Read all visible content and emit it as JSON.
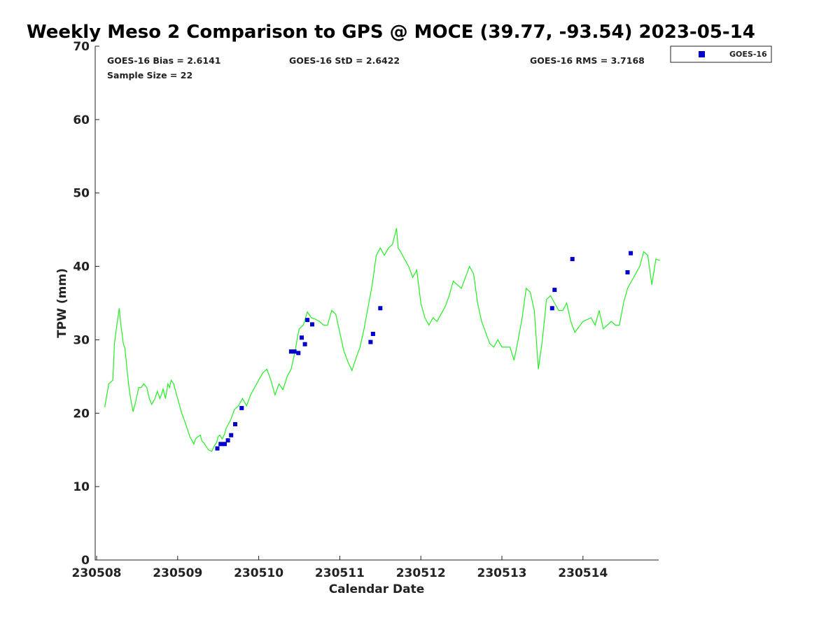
{
  "chart_data": {
    "type": "scatter",
    "title": "Weekly Meso 2 Comparison to GPS @ MOCE (39.77, -93.54) 2023-05-14",
    "xlabel": "Calendar Date",
    "ylabel": "TPW (mm)",
    "xlim": [
      0.0,
      6.95
    ],
    "ylim": [
      0,
      70
    ],
    "x_ticks": [
      {
        "value": 0,
        "label": "230508"
      },
      {
        "value": 1,
        "label": "230509"
      },
      {
        "value": 2,
        "label": "230510"
      },
      {
        "value": 3,
        "label": "230511"
      },
      {
        "value": 4,
        "label": "230512"
      },
      {
        "value": 5,
        "label": "230513"
      },
      {
        "value": 6,
        "label": "230514"
      }
    ],
    "y_ticks": [
      0,
      10,
      20,
      30,
      40,
      50,
      60,
      70
    ],
    "stats": {
      "bias": "GOES-16 Bias = 2.6141",
      "std": "GOES-16 StD = 2.6422",
      "rms": "GOES-16 RMS = 3.7168",
      "sample": "Sample Size = 22"
    },
    "legend": {
      "position": "top-right",
      "entries": [
        {
          "name": "GOES-16",
          "marker": "square",
          "color": "#0000cc"
        }
      ]
    },
    "series": [
      {
        "name": "GPS",
        "kind": "line",
        "color": "#22ee22",
        "x": [
          0.1,
          0.15,
          0.2,
          0.22,
          0.25,
          0.28,
          0.3,
          0.33,
          0.35,
          0.38,
          0.4,
          0.42,
          0.45,
          0.48,
          0.52,
          0.55,
          0.58,
          0.62,
          0.65,
          0.68,
          0.72,
          0.75,
          0.78,
          0.8,
          0.82,
          0.85,
          0.88,
          0.9,
          0.92,
          0.95,
          1.0,
          1.05,
          1.1,
          1.15,
          1.2,
          1.22,
          1.25,
          1.28,
          1.3,
          1.32,
          1.35,
          1.38,
          1.42,
          1.45,
          1.48,
          1.5,
          1.52,
          1.55,
          1.58,
          1.6,
          1.65,
          1.7,
          1.75,
          1.8,
          1.85,
          1.9,
          1.95,
          2.0,
          2.05,
          2.1,
          2.15,
          2.2,
          2.25,
          2.28,
          2.3,
          2.35,
          2.4,
          2.45,
          2.48,
          2.5,
          2.55,
          2.6,
          2.65,
          2.7,
          2.75,
          2.8,
          2.85,
          2.9,
          2.95,
          3.0,
          3.05,
          3.1,
          3.15,
          3.2,
          3.25,
          3.3,
          3.35,
          3.4,
          3.45,
          3.5,
          3.55,
          3.6,
          3.65,
          3.7,
          3.72,
          3.75,
          3.8,
          3.85,
          3.9,
          3.95,
          4.0,
          4.05,
          4.1,
          4.15,
          4.2,
          4.25,
          4.3,
          4.35,
          4.4,
          4.45,
          4.5,
          4.55,
          4.6,
          4.65,
          4.7,
          4.75,
          4.8,
          4.85,
          4.9,
          4.95,
          5.0,
          5.1,
          5.15,
          5.2,
          5.25,
          5.3,
          5.35,
          5.4,
          5.45,
          5.5,
          5.55,
          5.6,
          5.65,
          5.7,
          5.75,
          5.8,
          5.85,
          5.9,
          6.0,
          6.1,
          6.15,
          6.2,
          6.25,
          6.3,
          6.35,
          6.4,
          6.45,
          6.5,
          6.55,
          6.6,
          6.65,
          6.7,
          6.75,
          6.8,
          6.85,
          6.9,
          6.95
        ],
        "y": [
          20.8,
          24.0,
          24.5,
          29.5,
          32.0,
          34.3,
          32.0,
          29.5,
          28.8,
          25.5,
          23.5,
          22.0,
          20.2,
          21.5,
          23.5,
          23.5,
          24.0,
          23.5,
          22.0,
          21.2,
          22.0,
          23.0,
          22.0,
          22.5,
          23.3,
          22.0,
          24.0,
          23.5,
          24.5,
          24.0,
          22.0,
          20.0,
          18.5,
          16.8,
          15.8,
          16.5,
          16.8,
          17.0,
          16.2,
          16.0,
          15.5,
          15.0,
          14.8,
          15.5,
          16.0,
          16.8,
          17.0,
          16.5,
          17.2,
          18.0,
          19.0,
          20.5,
          21.0,
          22.0,
          21.0,
          22.5,
          23.5,
          24.5,
          25.5,
          26.0,
          24.5,
          22.5,
          24.0,
          23.5,
          23.2,
          25.0,
          26.0,
          28.5,
          30.5,
          31.5,
          32.0,
          33.8,
          33.0,
          32.8,
          32.5,
          32.0,
          32.0,
          34.0,
          33.5,
          31.0,
          28.5,
          27.0,
          25.8,
          27.5,
          29.0,
          31.5,
          34.5,
          37.5,
          41.5,
          42.5,
          41.5,
          42.5,
          43.0,
          45.2,
          42.5,
          42.0,
          41.0,
          40.0,
          38.5,
          39.5,
          35.0,
          33.0,
          32.0,
          33.0,
          32.5,
          33.5,
          34.5,
          36.0,
          38.0,
          37.5,
          37.0,
          38.5,
          40.0,
          39.0,
          35.0,
          32.5,
          31.0,
          29.5,
          29.0,
          30.0,
          29.0,
          29.0,
          27.2,
          30.0,
          33.0,
          37.0,
          36.5,
          34.0,
          26.0,
          30.0,
          35.5,
          36.0,
          35.0,
          34.0,
          34.0,
          35.0,
          32.5,
          31.0,
          32.5,
          33.0,
          32.0,
          34.0,
          31.5,
          32.0,
          32.5,
          32.0,
          32.0,
          35.0,
          37.0,
          38.0,
          39.0,
          40.0,
          42.0,
          41.5,
          37.5,
          41.0,
          40.8
        ]
      },
      {
        "name": "GOES-16",
        "kind": "scatter",
        "color": "#0000cc",
        "x": [
          1.49,
          1.53,
          1.58,
          1.62,
          1.66,
          1.71,
          1.79,
          2.4,
          2.44,
          2.49,
          2.53,
          2.57,
          2.6,
          2.66,
          3.38,
          3.41,
          3.5,
          5.62,
          5.65,
          5.87,
          6.55,
          6.59
        ],
        "y": [
          15.2,
          15.8,
          15.8,
          16.3,
          17.0,
          18.5,
          20.7,
          28.4,
          28.4,
          28.2,
          30.3,
          29.4,
          32.7,
          32.1,
          29.7,
          30.8,
          34.3,
          34.3,
          36.8,
          41.0,
          39.2,
          41.8
        ]
      }
    ]
  }
}
